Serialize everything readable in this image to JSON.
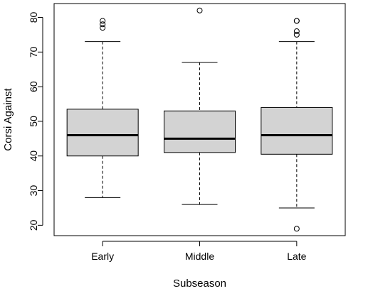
{
  "chart_data": {
    "type": "boxplot",
    "xlabel": "Subseason",
    "ylabel": "Corsi Against",
    "ylim": [
      17,
      84
    ],
    "yticks": [
      20,
      30,
      40,
      50,
      60,
      70,
      80
    ],
    "grid": false,
    "box_color": "#d3d3d3",
    "categories": [
      "Early",
      "Middle",
      "Late"
    ],
    "boxes": [
      {
        "name": "Early",
        "lower_whisker": 28,
        "q1": 40,
        "median": 46,
        "q3": 53.5,
        "upper_whisker": 73,
        "outliers": [
          77,
          78,
          79
        ]
      },
      {
        "name": "Middle",
        "lower_whisker": 26,
        "q1": 41,
        "median": 45,
        "q3": 53,
        "upper_whisker": 67,
        "outliers": [
          82
        ]
      },
      {
        "name": "Late",
        "lower_whisker": 25,
        "q1": 40.5,
        "median": 46,
        "q3": 54,
        "upper_whisker": 73,
        "outliers": [
          19,
          75,
          76,
          79,
          79
        ]
      }
    ]
  }
}
